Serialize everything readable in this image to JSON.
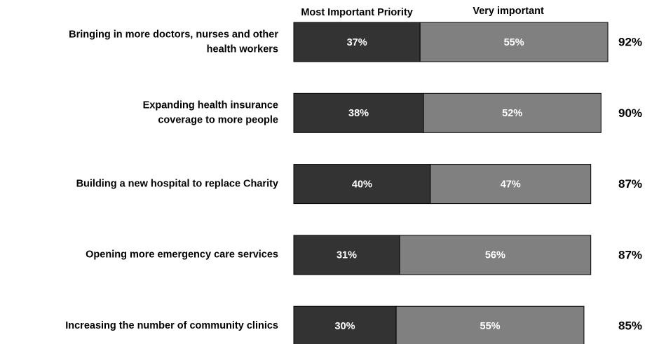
{
  "chart_data": {
    "type": "stacked-bar-horizontal",
    "categories": [
      [
        "Bringing in more doctors, nurses and other",
        "health workers"
      ],
      [
        "Expanding health insurance",
        "coverage to more people"
      ],
      [
        "Building a new hospital to replace Charity"
      ],
      [
        "Opening more emergency care services"
      ],
      [
        "Increasing the number of community clinics"
      ]
    ],
    "series": [
      {
        "name": "Most Important Priority",
        "color": "#333333",
        "values": [
          37,
          38,
          40,
          31,
          30
        ],
        "value_labels": [
          "37%",
          "38%",
          "40%",
          "31%",
          "30%"
        ]
      },
      {
        "name": "Very important",
        "color": "#808080",
        "values": [
          55,
          52,
          47,
          56,
          55
        ],
        "value_labels": [
          "55%",
          "52%",
          "47%",
          "56%",
          "55%"
        ]
      }
    ],
    "totals": [
      92,
      90,
      87,
      87,
      85
    ],
    "totals_labels": [
      "92%",
      "90%",
      "87%",
      "87%",
      "85%"
    ],
    "xlim": [
      0,
      100
    ]
  }
}
